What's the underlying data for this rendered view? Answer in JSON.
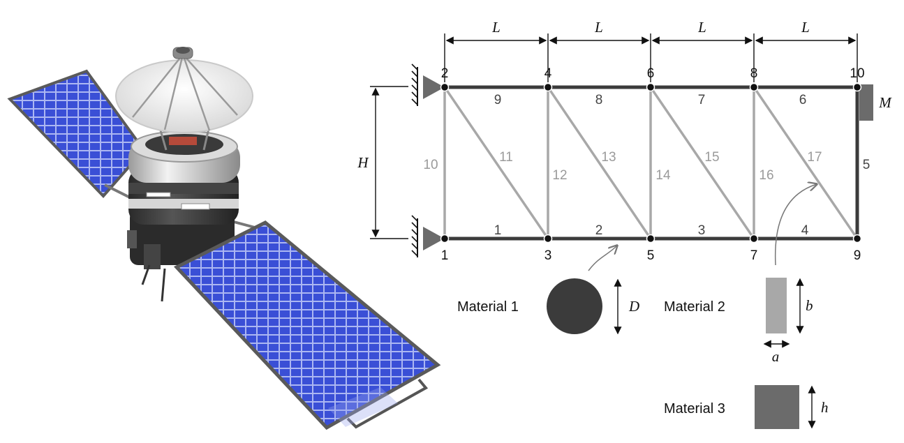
{
  "colors": {
    "material1": "#3b3b3b",
    "material2": "#a8a8a8",
    "material3": "#6b6b6b",
    "panel_blue": "#3a4fd6",
    "panel_frame": "#555555"
  },
  "dimensions": {
    "span": "L",
    "height": "H",
    "mass": "M",
    "diameter": "D",
    "rect_height": "b",
    "rect_width": "a",
    "square_side": "h"
  },
  "nodes": [
    "1",
    "2",
    "3",
    "4",
    "5",
    "6",
    "7",
    "8",
    "9",
    "10"
  ],
  "members": {
    "bottom": [
      "1",
      "2",
      "3",
      "4"
    ],
    "right_end": "5",
    "top": [
      "6",
      "7",
      "8",
      "9"
    ],
    "verticals": [
      "10",
      "12",
      "14",
      "16"
    ],
    "diagonals": [
      "11",
      "13",
      "15",
      "17"
    ]
  },
  "materials": {
    "m1": "Material 1",
    "m2": "Material 2",
    "m3": "Material 3"
  },
  "illustration": {
    "subject": "satellite",
    "icons": [
      "solar-panel-icon",
      "satellite-dish-icon",
      "satellite-body-icon"
    ]
  }
}
